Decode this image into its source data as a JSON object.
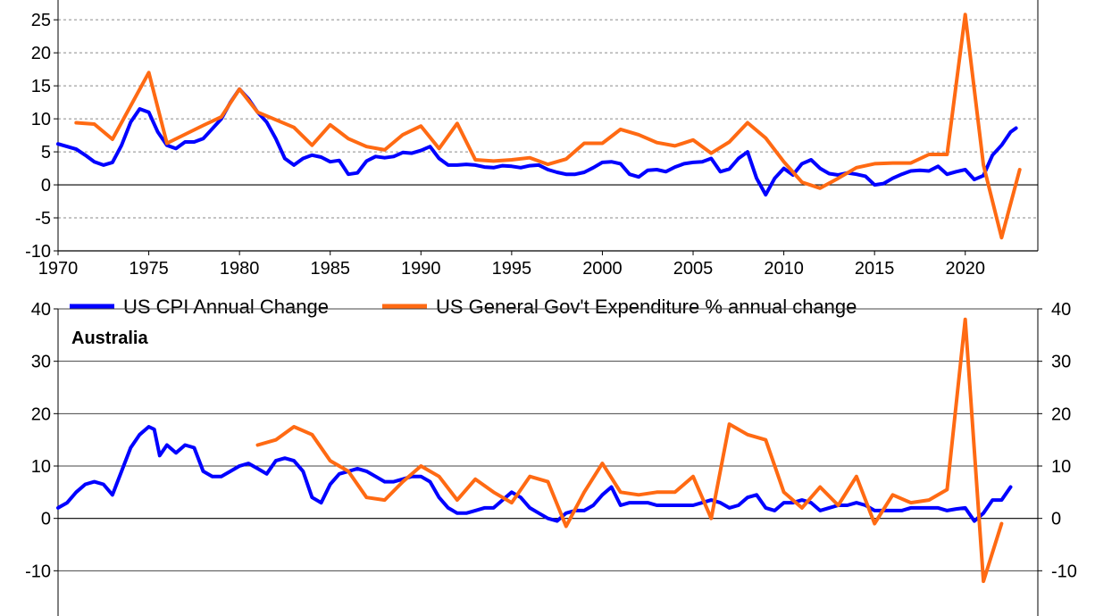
{
  "colors": {
    "cpi": "#0000ff",
    "gov": "#ff6a13",
    "grid": "#8a8a8a",
    "axis": "#000000"
  },
  "legend": {
    "cpi_label": "US CPI Annual Change",
    "gov_label": "US General Gov't Expenditure % annual change",
    "placement": "between panels"
  },
  "chart_data": [
    {
      "type": "line",
      "panel": "us",
      "title": "",
      "xlim": [
        1970,
        2024
      ],
      "ylim": [
        -10,
        28
      ],
      "grid": "dashed horizontal",
      "x_ticks": [
        1970,
        1975,
        1980,
        1985,
        1990,
        1995,
        2000,
        2005,
        2010,
        2015,
        2020
      ],
      "y_ticks": [
        -10,
        -5,
        0,
        5,
        10,
        15,
        20,
        25
      ],
      "series": [
        {
          "name": "US CPI Annual Change",
          "color": "#0000ff",
          "x": [
            1970,
            1971,
            1971.5,
            1972,
            1972.5,
            1973,
            1973.5,
            1974,
            1974.5,
            1975,
            1975.5,
            1976,
            1976.5,
            1977,
            1977.5,
            1978,
            1978.5,
            1979,
            1979.5,
            1980,
            1980.5,
            1981,
            1981.5,
            1982,
            1982.5,
            1983,
            1983.5,
            1984,
            1984.5,
            1985,
            1985.5,
            1986,
            1986.5,
            1987,
            1987.5,
            1988,
            1988.5,
            1989,
            1989.5,
            1990,
            1990.5,
            1991,
            1991.5,
            1992,
            1992.5,
            1993,
            1993.5,
            1994,
            1994.5,
            1995,
            1995.5,
            1996,
            1996.5,
            1997,
            1997.5,
            1998,
            1998.5,
            1999,
            1999.5,
            2000,
            2000.5,
            2001,
            2001.5,
            2002,
            2002.5,
            2003,
            2003.5,
            2004,
            2004.5,
            2005,
            2005.5,
            2006,
            2006.5,
            2007,
            2007.5,
            2008,
            2008.5,
            2009,
            2009.5,
            2010,
            2010.5,
            2011,
            2011.5,
            2012,
            2012.5,
            2013,
            2013.5,
            2014,
            2014.5,
            2015,
            2015.5,
            2016,
            2016.5,
            2017,
            2017.5,
            2018,
            2018.5,
            2019,
            2019.5,
            2020,
            2020.5,
            2021,
            2021.5,
            2022,
            2022.5,
            2022.8
          ],
          "values": [
            6.2,
            5.4,
            4.5,
            3.5,
            3.0,
            3.4,
            6.0,
            9.5,
            11.5,
            11.0,
            8.0,
            6.0,
            5.5,
            6.5,
            6.5,
            7.0,
            8.5,
            10.0,
            12.5,
            14.5,
            13.0,
            11.0,
            9.5,
            7.0,
            4.0,
            3.0,
            4.0,
            4.5,
            4.2,
            3.5,
            3.7,
            1.6,
            1.8,
            3.6,
            4.3,
            4.1,
            4.3,
            4.9,
            4.8,
            5.2,
            5.8,
            4.0,
            3.0,
            3.0,
            3.1,
            3.0,
            2.7,
            2.6,
            2.9,
            2.8,
            2.6,
            2.9,
            3.0,
            2.3,
            1.9,
            1.6,
            1.6,
            1.9,
            2.6,
            3.4,
            3.5,
            3.2,
            1.6,
            1.2,
            2.2,
            2.3,
            2.0,
            2.7,
            3.2,
            3.4,
            3.5,
            4.0,
            2.0,
            2.4,
            4.0,
            5.0,
            1.0,
            -1.5,
            1.0,
            2.5,
            1.5,
            3.2,
            3.8,
            2.5,
            1.7,
            1.5,
            1.8,
            1.6,
            1.3,
            0.0,
            0.2,
            1.0,
            1.6,
            2.1,
            2.2,
            2.1,
            2.8,
            1.6,
            2.0,
            2.3,
            0.8,
            1.4,
            4.5,
            6.0,
            8.0,
            8.6
          ]
        },
        {
          "name": "US General Gov't Expenditure % annual change",
          "color": "#ff6a13",
          "x": [
            1971,
            1972,
            1973,
            1975,
            1976,
            1978,
            1979,
            1980,
            1981,
            1983,
            1984,
            1985,
            1986,
            1987,
            1988,
            1989,
            1990,
            1991,
            1992,
            1993,
            1994,
            1995,
            1996,
            1997,
            1998,
            1999,
            2000,
            2001,
            2002,
            2003,
            2004,
            2005,
            2006,
            2007,
            2008,
            2009,
            2010,
            2011,
            2012,
            2013,
            2014,
            2015,
            2016,
            2017,
            2018,
            2019,
            2020,
            2021,
            2022,
            2023
          ],
          "values": [
            9.4,
            9.2,
            6.9,
            17.0,
            6.3,
            9.0,
            10.3,
            14.5,
            11.0,
            8.7,
            6.0,
            9.1,
            7.0,
            5.8,
            5.3,
            7.6,
            8.9,
            5.5,
            9.3,
            3.8,
            3.6,
            3.8,
            4.1,
            3.1,
            3.9,
            6.3,
            6.3,
            8.4,
            7.6,
            6.4,
            5.9,
            6.8,
            4.8,
            6.5,
            9.4,
            7.1,
            3.5,
            0.4,
            -0.5,
            1.0,
            2.6,
            3.2,
            3.3,
            3.3,
            4.6,
            4.6,
            25.8,
            3.0,
            -8.0,
            2.3
          ]
        }
      ]
    },
    {
      "type": "line",
      "panel": "australia",
      "title": "Australia",
      "xlim": [
        1970,
        2024
      ],
      "ylim": [
        -20,
        40
      ],
      "grid": "solid horizontal",
      "y_ticks": [
        -10,
        0,
        10,
        20,
        30,
        40
      ],
      "series": [
        {
          "name": "US CPI Annual Change",
          "color": "#0000ff",
          "x": [
            1970,
            1970.5,
            1971,
            1971.5,
            1972,
            1972.5,
            1973,
            1973.5,
            1974,
            1974.5,
            1975,
            1975.3,
            1975.6,
            1976,
            1976.5,
            1977,
            1977.5,
            1978,
            1978.5,
            1979,
            1979.5,
            1980,
            1980.5,
            1981,
            1981.5,
            1982,
            1982.5,
            1983,
            1983.5,
            1984,
            1984.5,
            1985,
            1985.5,
            1986,
            1986.5,
            1987,
            1987.5,
            1988,
            1988.5,
            1989,
            1989.5,
            1990,
            1990.5,
            1991,
            1991.5,
            1992,
            1992.5,
            1993,
            1993.5,
            1994,
            1994.5,
            1995,
            1995.5,
            1996,
            1996.5,
            1997,
            1997.5,
            1998,
            1998.5,
            1999,
            1999.5,
            2000,
            2000.5,
            2001,
            2001.5,
            2002,
            2002.5,
            2003,
            2003.5,
            2004,
            2004.5,
            2005,
            2005.5,
            2006,
            2006.5,
            2007,
            2007.5,
            2008,
            2008.5,
            2009,
            2009.5,
            2010,
            2010.5,
            2011,
            2011.5,
            2012,
            2012.5,
            2013,
            2013.5,
            2014,
            2014.5,
            2015,
            2015.5,
            2016,
            2016.5,
            2017,
            2017.5,
            2018,
            2018.5,
            2019,
            2019.5,
            2020,
            2020.5,
            2021,
            2021.5,
            2022,
            2022.5
          ],
          "values": [
            2.0,
            3.0,
            5.0,
            6.5,
            7.0,
            6.5,
            4.5,
            9.0,
            13.5,
            16.0,
            17.5,
            17.0,
            12.0,
            14.0,
            12.5,
            14.0,
            13.5,
            9.0,
            8.0,
            8.0,
            9.0,
            10.0,
            10.5,
            9.5,
            8.5,
            11.0,
            11.5,
            11.0,
            9.0,
            4.0,
            3.0,
            6.5,
            8.5,
            9.0,
            9.5,
            9.0,
            8.0,
            7.0,
            7.0,
            7.5,
            8.0,
            8.0,
            7.0,
            4.0,
            2.0,
            1.0,
            1.0,
            1.5,
            2.0,
            2.0,
            3.5,
            5.0,
            4.0,
            2.0,
            1.0,
            0.0,
            -0.5,
            1.0,
            1.5,
            1.5,
            2.5,
            4.5,
            6.0,
            2.5,
            3.0,
            3.0,
            3.0,
            2.5,
            2.5,
            2.5,
            2.5,
            2.5,
            3.0,
            3.5,
            3.0,
            2.0,
            2.5,
            4.0,
            4.5,
            2.0,
            1.5,
            3.0,
            3.0,
            3.5,
            3.0,
            1.5,
            2.0,
            2.5,
            2.5,
            3.0,
            2.5,
            1.5,
            1.5,
            1.5,
            1.5,
            2.0,
            2.0,
            2.0,
            2.0,
            1.5,
            1.8,
            2.0,
            -0.5,
            1.0,
            3.5,
            3.5,
            6.0
          ]
        },
        {
          "name": "US General Gov't Expenditure % annual change",
          "color": "#ff6a13",
          "x": [
            1981,
            1982,
            1983,
            1984,
            1985,
            1986,
            1987,
            1988,
            1989,
            1990,
            1991,
            1992,
            1993,
            1994,
            1995,
            1996,
            1997,
            1998,
            1999,
            2000,
            2001,
            2002,
            2003,
            2004,
            2005,
            2006,
            2007,
            2008,
            2009,
            2010,
            2011,
            2012,
            2013,
            2014,
            2015,
            2016,
            2017,
            2018,
            2019,
            2020,
            2021,
            2022
          ],
          "values": [
            14.0,
            15.0,
            17.5,
            16.0,
            11.0,
            9.0,
            4.0,
            3.5,
            7.0,
            10.0,
            8.0,
            3.5,
            7.5,
            5.0,
            3.0,
            8.0,
            7.0,
            -1.5,
            5.0,
            10.5,
            5.0,
            4.5,
            5.0,
            5.0,
            8.0,
            0.0,
            18.0,
            16.0,
            15.0,
            5.0,
            2.0,
            6.0,
            2.5,
            8.0,
            -1.0,
            4.5,
            3.0,
            3.5,
            5.5,
            38.0,
            -12.0,
            -1.0
          ]
        }
      ]
    }
  ]
}
